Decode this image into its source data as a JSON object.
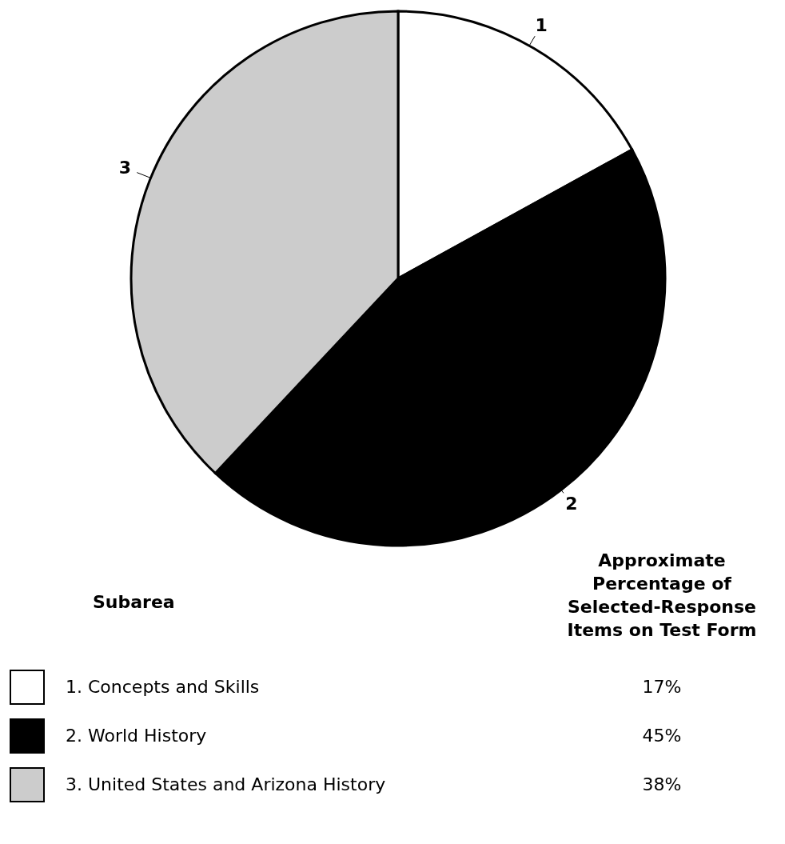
{
  "chart_data": {
    "type": "pie",
    "categories": [
      "1. Concepts and Skills",
      "2. World History",
      "3. United States and Arizona History"
    ],
    "values": [
      17,
      45,
      38
    ],
    "colors": [
      "#ffffff",
      "#000000",
      "#cccccc"
    ],
    "value_labels": [
      "17%",
      "45%",
      "38%"
    ],
    "legend": "bottom",
    "legend_title": "Subarea",
    "annotations": [
      "Approximate Percentage of Selected-Response Items on Test Form",
      {
        "text": "1",
        "x": "1. Concepts and Skills"
      },
      {
        "text": "2",
        "x": "2. World History"
      },
      {
        "text": "3",
        "x": "3. United States and Arizona History"
      }
    ]
  }
}
